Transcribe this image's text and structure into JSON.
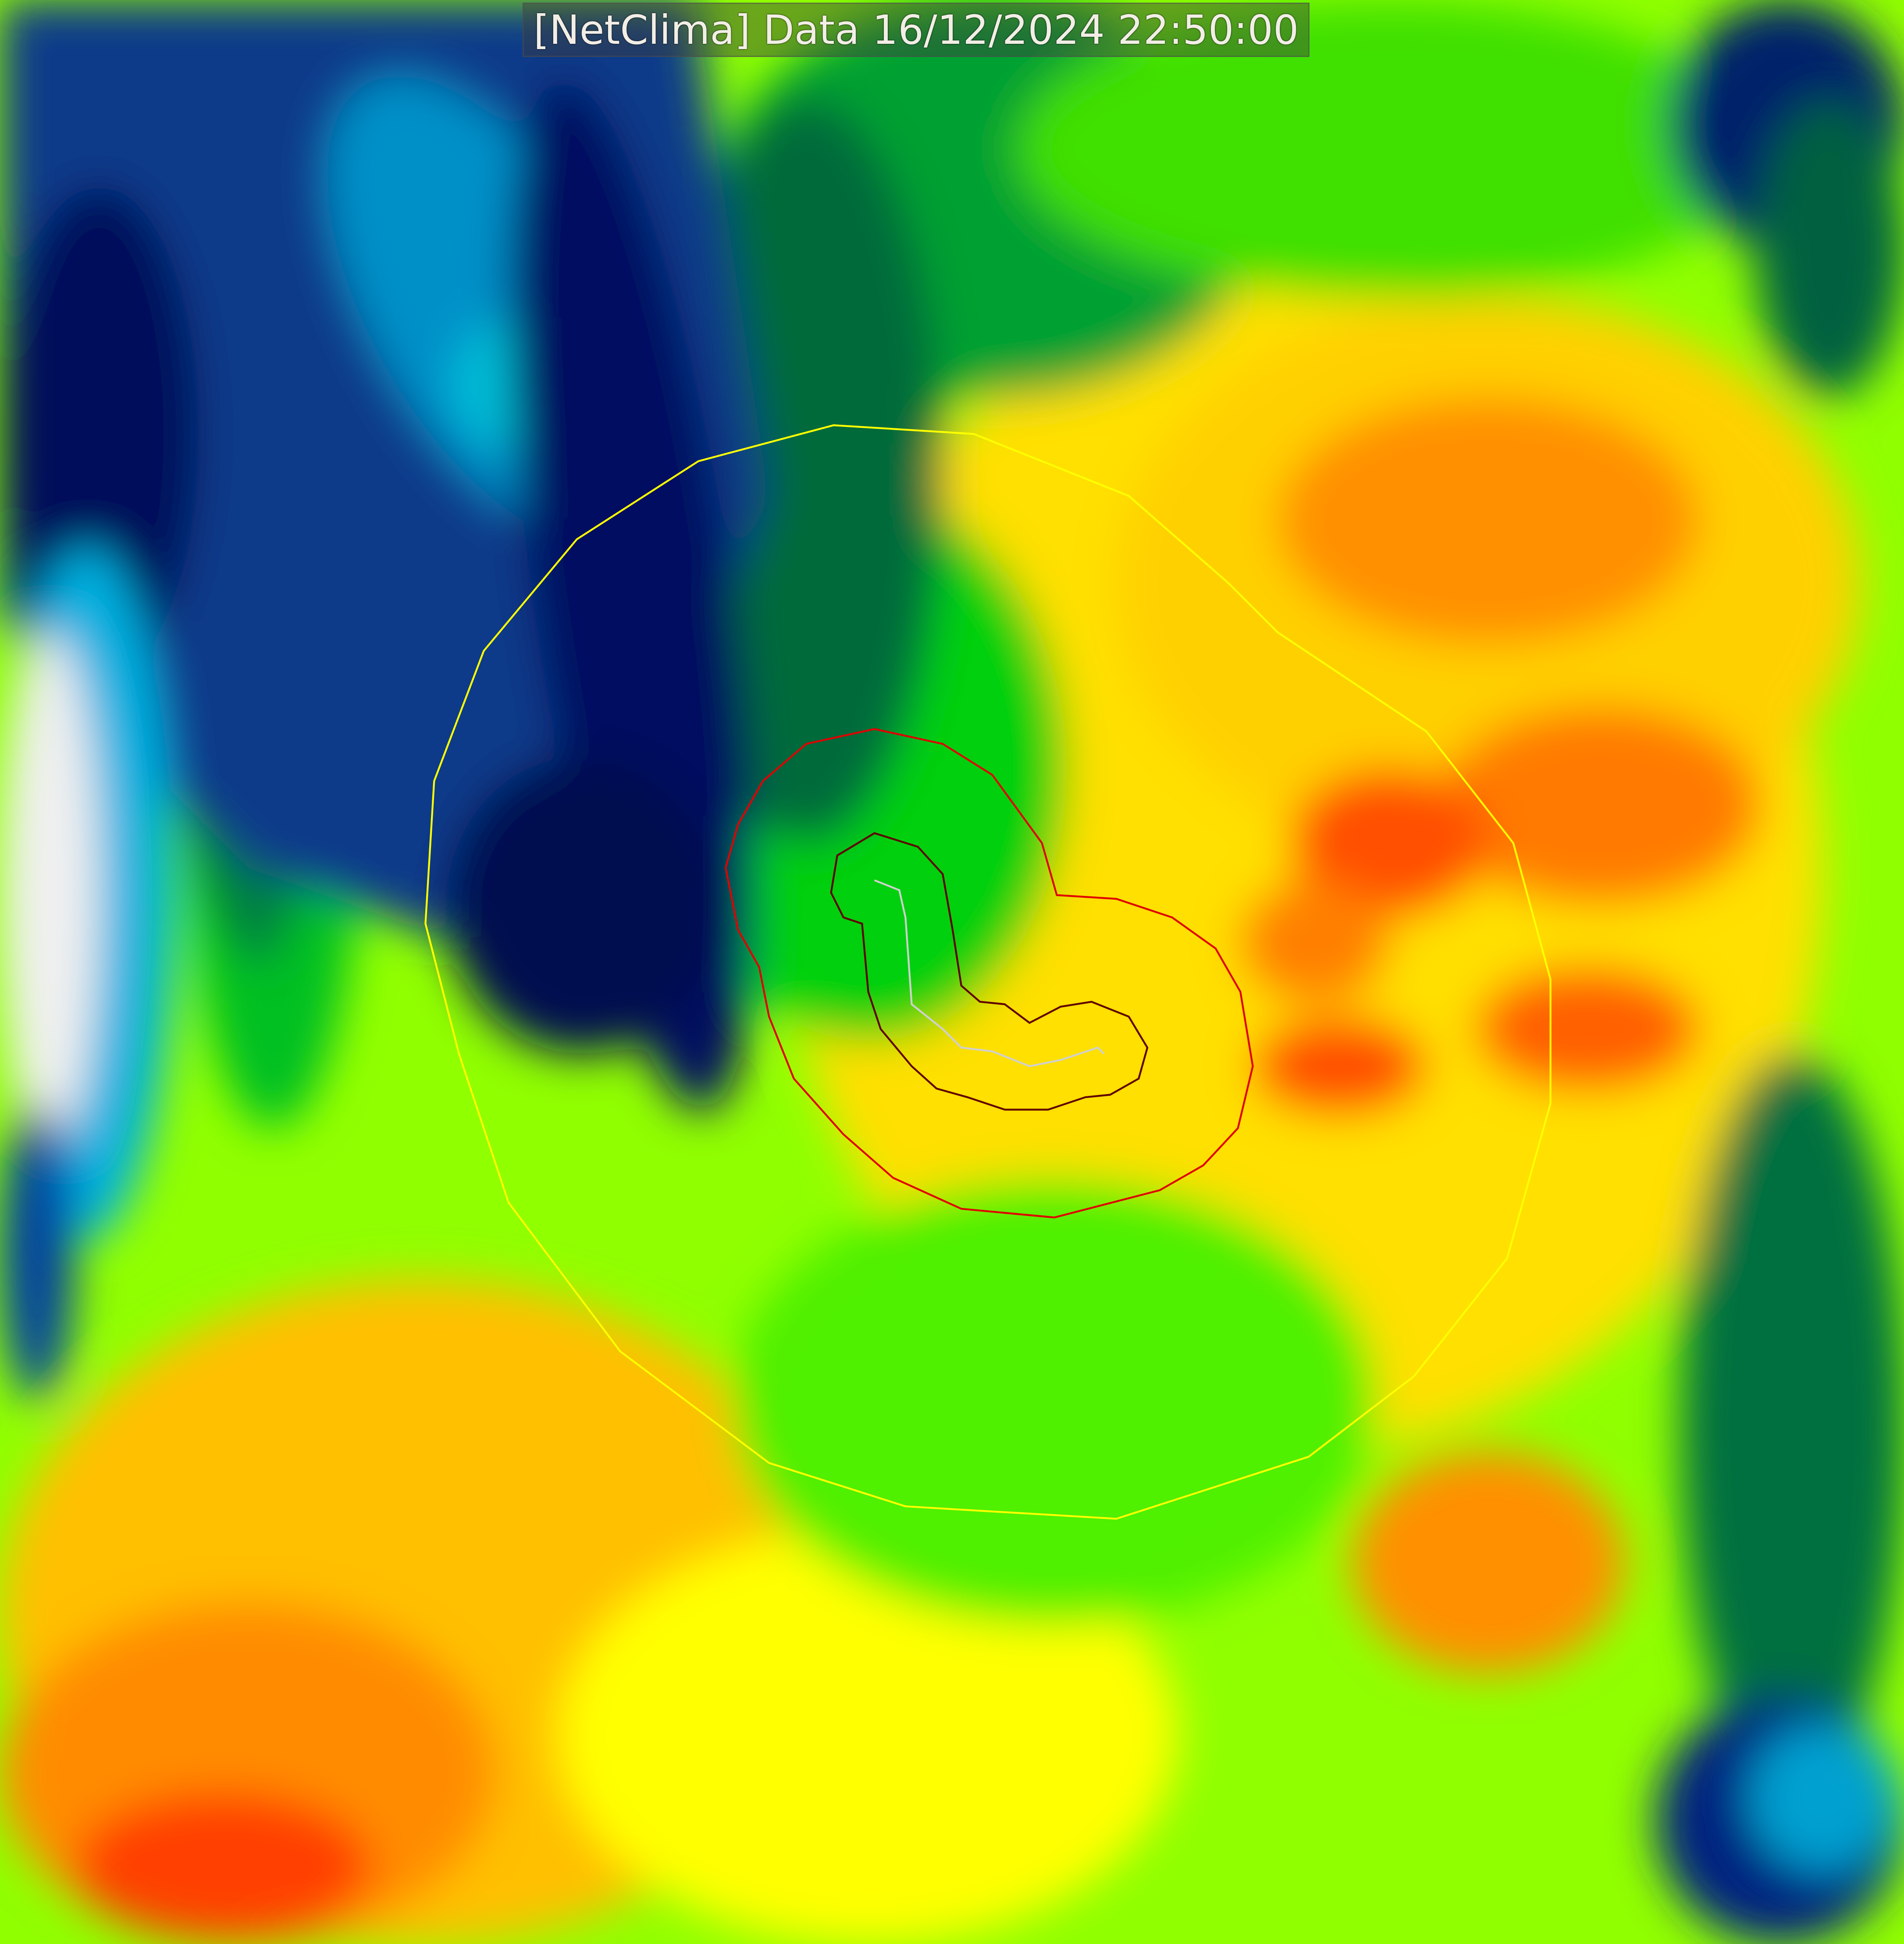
{
  "header": {
    "title": "[NetClima] Data 16/12/2024 22:50:00"
  },
  "map": {
    "layer": "heatmap field",
    "palette": [
      "#000066",
      "#0050a0",
      "#00c8e0",
      "#f0f0f0",
      "#00703a",
      "#00c000",
      "#00ff00",
      "#80ff00",
      "#ffff00",
      "#ffc800",
      "#ff8000",
      "#ff4000"
    ],
    "contours": [
      {
        "name": "outer-contour",
        "color": "#ffff00"
      },
      {
        "name": "middle-contour",
        "color": "#e00000"
      },
      {
        "name": "inner-contour",
        "color": "#600000"
      },
      {
        "name": "track",
        "color": "#d0d0d0"
      }
    ]
  }
}
